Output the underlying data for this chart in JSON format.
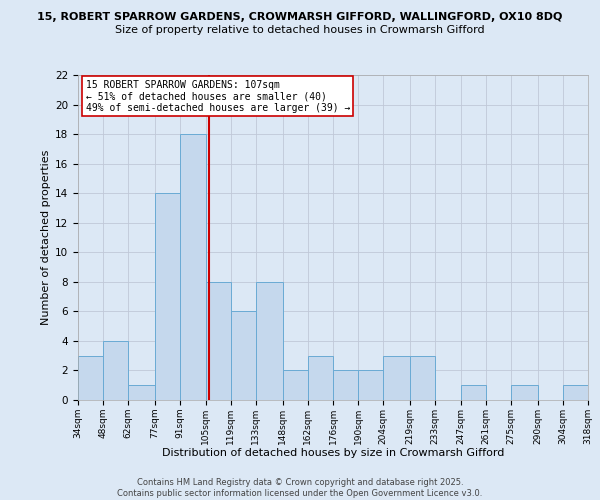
{
  "title_line1": "15, ROBERT SPARROW GARDENS, CROWMARSH GIFFORD, WALLINGFORD, OX10 8DQ",
  "title_line2": "Size of property relative to detached houses in Crowmarsh Gifford",
  "xlabel": "Distribution of detached houses by size in Crowmarsh Gifford",
  "ylabel": "Number of detached properties",
  "bins": [
    34,
    48,
    62,
    77,
    91,
    105,
    119,
    133,
    148,
    162,
    176,
    190,
    204,
    219,
    233,
    247,
    261,
    275,
    290,
    304,
    318
  ],
  "counts": [
    3,
    4,
    1,
    14,
    18,
    8,
    6,
    8,
    2,
    3,
    2,
    2,
    3,
    3,
    0,
    1,
    0,
    1,
    0,
    1
  ],
  "tick_labels": [
    "34sqm",
    "48sqm",
    "62sqm",
    "77sqm",
    "91sqm",
    "105sqm",
    "119sqm",
    "133sqm",
    "148sqm",
    "162sqm",
    "176sqm",
    "190sqm",
    "204sqm",
    "219sqm",
    "233sqm",
    "247sqm",
    "261sqm",
    "275sqm",
    "290sqm",
    "304sqm",
    "318sqm"
  ],
  "bar_color": "#c5d8ed",
  "bar_edge_color": "#6aaad4",
  "vline_x": 107,
  "vline_color": "#cc0000",
  "ylim": [
    0,
    22
  ],
  "yticks": [
    0,
    2,
    4,
    6,
    8,
    10,
    12,
    14,
    16,
    18,
    20,
    22
  ],
  "annotation_title": "15 ROBERT SPARROW GARDENS: 107sqm",
  "annotation_line2": "← 51% of detached houses are smaller (40)",
  "annotation_line3": "49% of semi-detached houses are larger (39) →",
  "bg_color": "#dce8f5",
  "footer": "Contains HM Land Registry data © Crown copyright and database right 2025.\nContains public sector information licensed under the Open Government Licence v3.0.",
  "grid_color": "#c0c8d8",
  "title1_fontsize": 8.0,
  "title2_fontsize": 8.0,
  "xlabel_fontsize": 8.0,
  "ylabel_fontsize": 8.0
}
